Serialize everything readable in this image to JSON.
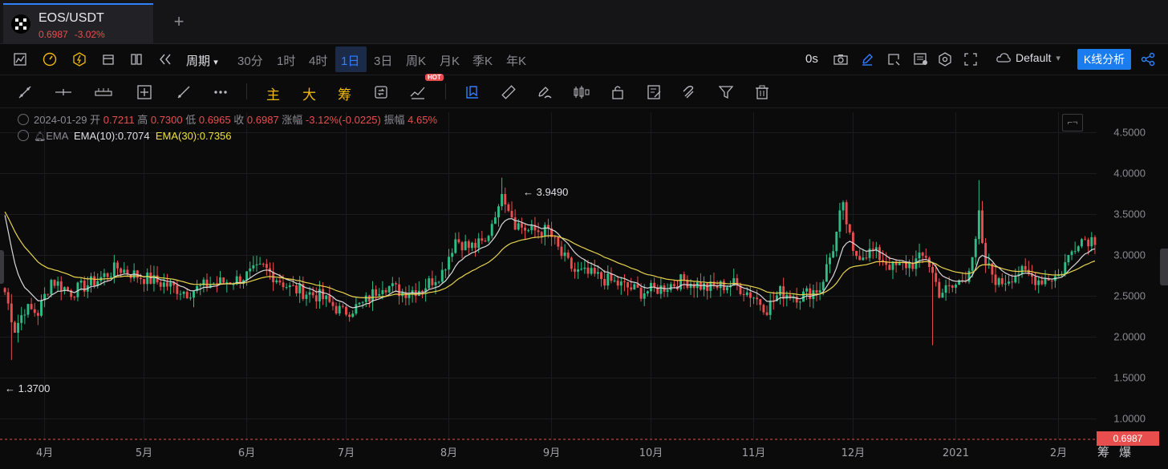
{
  "tab": {
    "symbol": "EOS/USDT",
    "price": "0.6987",
    "change": "-3.02%",
    "add_icon": "plus-icon"
  },
  "toolbar": {
    "period_label": "周期",
    "periods": [
      "30分",
      "1时",
      "4时",
      "1日",
      "3日",
      "周K",
      "月K",
      "季K",
      "年K"
    ],
    "active_period": "1日",
    "countdown": "0s",
    "theme_label": "Default",
    "kline_btn": "K线分析"
  },
  "indicators": {
    "main": "主",
    "big": "大",
    "chips": "筹",
    "hot_badge": "HOT"
  },
  "info": {
    "date": "2024-01-29",
    "open_label": "开",
    "open": "0.7211",
    "high_label": "高",
    "high": "0.7300",
    "low_label": "低",
    "low": "0.6965",
    "close_label": "收",
    "close": "0.6987",
    "chg_label": "涨幅",
    "chg": "-3.12%(-0.0225)",
    "amp_label": "振幅",
    "amp": "4.65%",
    "ema_name": "EMA",
    "ema10": "EMA(10):0.7074",
    "ema30": "EMA(30):0.7356"
  },
  "annotations": {
    "max_label": "← 3.9490",
    "min_label": "← 1.3700"
  },
  "price_tag": "0.6987",
  "bottom_right": [
    "筹",
    "爆"
  ],
  "chart_data": {
    "type": "candlestick",
    "y_ticks": [
      "4.5000",
      "4.0000",
      "3.5000",
      "3.0000",
      "2.5000",
      "2.0000",
      "1.5000",
      "1.0000"
    ],
    "y_tick_values": [
      4.5,
      4.0,
      3.5,
      3.0,
      2.5,
      2.0,
      1.5,
      1.0
    ],
    "ylim": [
      0.75,
      4.75
    ],
    "x_ticks": [
      "4月",
      "5月",
      "6月",
      "7月",
      "8月",
      "9月",
      "10月",
      "11月",
      "12月",
      "2021",
      "2月"
    ],
    "x_tick_index": [
      12,
      42,
      73,
      103,
      134,
      165,
      195,
      226,
      256,
      287,
      318
    ],
    "close_anchors": [
      [
        0,
        2.55
      ],
      [
        3,
        2.1
      ],
      [
        6,
        2.35
      ],
      [
        10,
        2.3
      ],
      [
        14,
        2.7
      ],
      [
        20,
        2.55
      ],
      [
        28,
        2.7
      ],
      [
        34,
        2.85
      ],
      [
        40,
        2.75
      ],
      [
        48,
        2.65
      ],
      [
        55,
        2.55
      ],
      [
        62,
        2.65
      ],
      [
        70,
        2.7
      ],
      [
        78,
        2.85
      ],
      [
        86,
        2.6
      ],
      [
        95,
        2.5
      ],
      [
        102,
        2.3
      ],
      [
        108,
        2.4
      ],
      [
        114,
        2.65
      ],
      [
        120,
        2.55
      ],
      [
        126,
        2.6
      ],
      [
        132,
        2.8
      ],
      [
        136,
        3.2
      ],
      [
        140,
        3.1
      ],
      [
        145,
        3.15
      ],
      [
        150,
        3.8
      ],
      [
        154,
        3.4
      ],
      [
        158,
        3.3
      ],
      [
        164,
        3.3
      ],
      [
        168,
        3.0
      ],
      [
        172,
        2.8
      ],
      [
        178,
        2.75
      ],
      [
        185,
        2.65
      ],
      [
        192,
        2.55
      ],
      [
        198,
        2.6
      ],
      [
        205,
        2.7
      ],
      [
        212,
        2.6
      ],
      [
        220,
        2.65
      ],
      [
        226,
        2.5
      ],
      [
        230,
        2.35
      ],
      [
        234,
        2.55
      ],
      [
        240,
        2.5
      ],
      [
        246,
        2.6
      ],
      [
        250,
        3.1
      ],
      [
        253,
        3.6
      ],
      [
        256,
        3.0
      ],
      [
        262,
        3.05
      ],
      [
        268,
        2.85
      ],
      [
        274,
        2.9
      ],
      [
        278,
        3.0
      ],
      [
        282,
        2.55
      ],
      [
        286,
        2.6
      ],
      [
        290,
        2.75
      ],
      [
        294,
        3.25
      ],
      [
        296,
        2.9
      ],
      [
        300,
        2.65
      ],
      [
        306,
        2.8
      ],
      [
        312,
        2.7
      ],
      [
        318,
        2.75
      ],
      [
        322,
        3.05
      ],
      [
        324,
        3.2
      ]
    ],
    "ema_colors": {
      "ema10": "#d9d9dc",
      "ema30": "#e8d44d"
    },
    "max": 3.949,
    "min": 1.37,
    "up_color": "#2ebd85",
    "down_color": "#e84e4e"
  }
}
